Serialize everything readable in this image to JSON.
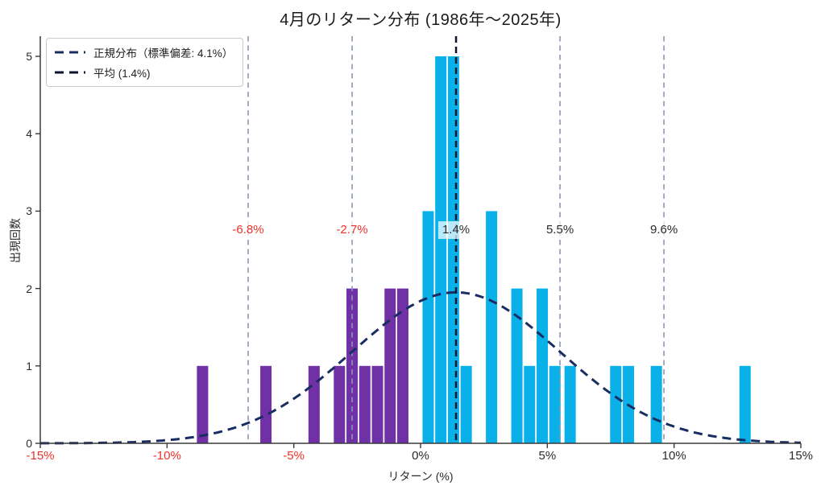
{
  "title": "4月のリターン分布 (1986年〜2025年)",
  "legend": {
    "normal_label": "正規分布（標準偏差: 4.1%）",
    "mean_label": "平均 (1.4%)"
  },
  "axes": {
    "xlabel": "リターン (%)",
    "ylabel": "出現回数"
  },
  "colors": {
    "bar_positive": "#0ab0e8",
    "bar_negative": "#7131a6",
    "curve": "#1a2d62",
    "mean_line": "#10132e",
    "sigma_line": "#8a97b8",
    "red_label": "#f03028",
    "dark_label": "#2a2a2a",
    "axis": "#3a3a3a",
    "background": "#ffffff"
  },
  "chart_data": {
    "type": "bar",
    "subtype": "histogram-with-normal-curve",
    "title": "4月のリターン分布 (1986年〜2025年)",
    "xlabel": "リターン (%)",
    "ylabel": "出現回数",
    "xlim": [
      -15,
      15
    ],
    "ylim": [
      0,
      5.26
    ],
    "grid": false,
    "legend_position": "upper-left",
    "bin_width_pct": 0.5,
    "total_observations": 40,
    "x_ticks": [
      {
        "value": -15,
        "label": "-15%",
        "negative": true
      },
      {
        "value": -10,
        "label": "-10%",
        "negative": true
      },
      {
        "value": -5,
        "label": "-5%",
        "negative": true
      },
      {
        "value": 0,
        "label": "0%",
        "negative": false
      },
      {
        "value": 5,
        "label": "5%",
        "negative": false
      },
      {
        "value": 10,
        "label": "10%",
        "negative": false
      },
      {
        "value": 15,
        "label": "15%",
        "negative": false
      }
    ],
    "y_ticks": [
      0,
      1,
      2,
      3,
      4,
      5
    ],
    "bars": [
      {
        "x": -8.6,
        "count": 1,
        "group": "negative"
      },
      {
        "x": -6.1,
        "count": 1,
        "group": "negative"
      },
      {
        "x": -4.2,
        "count": 1,
        "group": "negative"
      },
      {
        "x": -3.2,
        "count": 1,
        "group": "negative"
      },
      {
        "x": -2.7,
        "count": 2,
        "group": "negative"
      },
      {
        "x": -2.2,
        "count": 1,
        "group": "negative"
      },
      {
        "x": -1.7,
        "count": 1,
        "group": "negative"
      },
      {
        "x": -1.2,
        "count": 2,
        "group": "negative"
      },
      {
        "x": -0.7,
        "count": 2,
        "group": "negative"
      },
      {
        "x": 0.3,
        "count": 3,
        "group": "positive"
      },
      {
        "x": 0.8,
        "count": 5,
        "group": "positive"
      },
      {
        "x": 1.3,
        "count": 5,
        "group": "positive"
      },
      {
        "x": 1.8,
        "count": 1,
        "group": "positive"
      },
      {
        "x": 2.8,
        "count": 3,
        "group": "positive"
      },
      {
        "x": 3.8,
        "count": 2,
        "group": "positive"
      },
      {
        "x": 4.3,
        "count": 1,
        "group": "positive"
      },
      {
        "x": 4.8,
        "count": 2,
        "group": "positive"
      },
      {
        "x": 5.3,
        "count": 1,
        "group": "positive"
      },
      {
        "x": 5.9,
        "count": 1,
        "group": "positive"
      },
      {
        "x": 7.7,
        "count": 1,
        "group": "positive"
      },
      {
        "x": 8.2,
        "count": 1,
        "group": "positive"
      },
      {
        "x": 9.3,
        "count": 1,
        "group": "positive"
      },
      {
        "x": 12.8,
        "count": 1,
        "group": "positive"
      }
    ],
    "normal_curve": {
      "mean": 1.4,
      "std": 4.1,
      "peak_height": 1.95
    },
    "mean_line": {
      "value": 1.4
    },
    "sigma_lines": [
      -6.8,
      -2.7,
      5.5,
      9.6
    ],
    "annotations": [
      {
        "value": -6.8,
        "label": "-6.8%",
        "red": true
      },
      {
        "value": -2.7,
        "label": "-2.7%",
        "red": true
      },
      {
        "value": 1.4,
        "label": "1.4%",
        "red": false
      },
      {
        "value": 5.5,
        "label": "5.5%",
        "red": false
      },
      {
        "value": 9.6,
        "label": "9.6%",
        "red": false
      }
    ]
  }
}
